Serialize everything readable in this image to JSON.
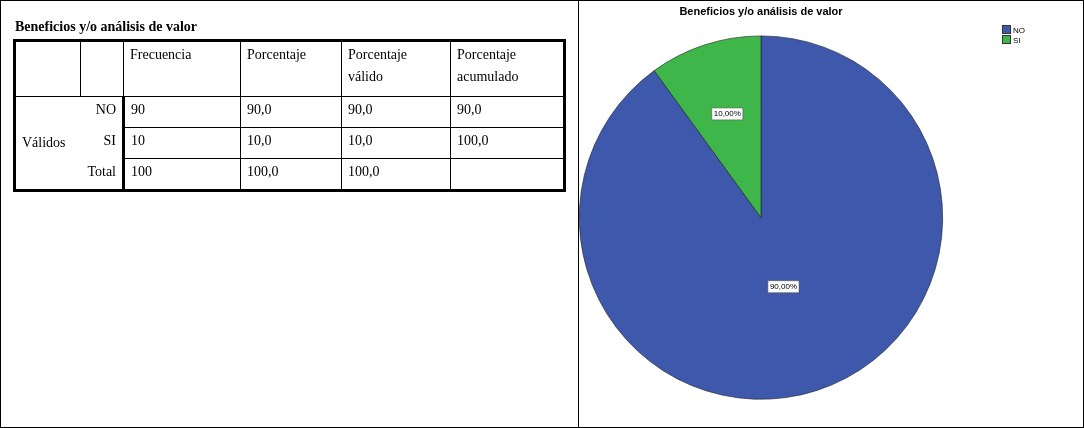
{
  "chart_data": [
    {
      "type": "other",
      "title": "Beneficios y/o análisis de valor",
      "categories": [
        null,
        null,
        "Frecuencia",
        "Porcentaje",
        "Porcentaje válido",
        "Porcentaje acumulado"
      ],
      "cell_labels": [
        [
          null,
          "NO",
          "90",
          "90,0",
          "90,0",
          "90,0"
        ],
        [
          "Válidos",
          "SI",
          "10",
          "10,0",
          "10,0",
          "100,0"
        ],
        [
          null,
          "Total",
          "100",
          "100,0",
          "100,0",
          null
        ]
      ]
    },
    {
      "type": "pie",
      "title": "Beneficios y/o análisis de valor",
      "categories": [
        "NO",
        "SI"
      ],
      "values": [
        90,
        10
      ],
      "colors": [
        "#3e58ac",
        "#3eb64a"
      ],
      "value_labels": [
        "90,00%",
        "10,00%"
      ],
      "legend": "top right"
    }
  ]
}
